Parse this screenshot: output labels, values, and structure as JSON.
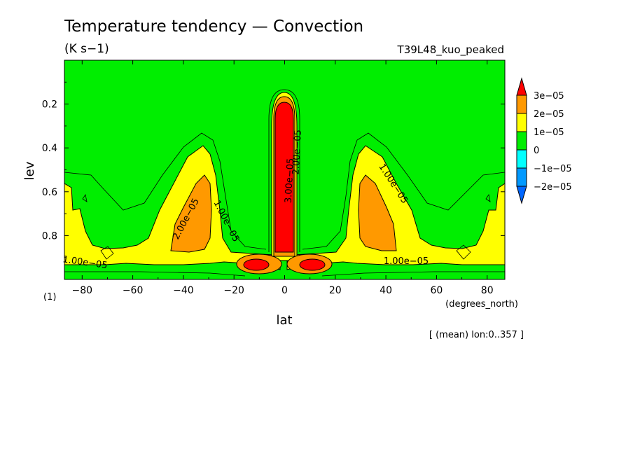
{
  "chart_data": {
    "type": "contour",
    "title": "Temperature tendency — Convection",
    "units_label": "(K s−1)",
    "run_label": "T39L48_kuo_peaked",
    "xlabel": "lat",
    "x_units": "(degrees_north)",
    "ylabel": "lev",
    "y_units": "(1)",
    "footnote": "[ (mean) lon:0..357 ]",
    "xlim": [
      -87,
      87
    ],
    "ylim": [
      1.0,
      0.0
    ],
    "y_inverted": true,
    "xticks": [
      -80,
      -60,
      -40,
      -20,
      0,
      20,
      40,
      60,
      80
    ],
    "xtick_labels": [
      "−80",
      "−60",
      "−40",
      "−20",
      "0",
      "20",
      "40",
      "60",
      "80"
    ],
    "yticks": [
      0.2,
      0.4,
      0.6,
      0.8
    ],
    "ytick_labels": [
      "0.2",
      "0.4",
      "0.6",
      "0.8"
    ],
    "colorbar": {
      "levels": [
        "3e−05",
        "2e−05",
        "1e−05",
        "0",
        "−1e−05",
        "−2e−05"
      ],
      "colors": [
        "#ff0000",
        "#ff9900",
        "#ffff00",
        "#00ee00",
        "#00ffff",
        "#0099ff",
        "#0066ff"
      ]
    },
    "contour_labels": [
      {
        "text": "1.00e−05",
        "lat": -79,
        "lev": 0.935,
        "angle": 8
      },
      {
        "text": "2.00e−05",
        "lat": -38,
        "lev": 0.73,
        "angle": -62
      },
      {
        "text": "1.00e−05",
        "lat": -24,
        "lev": 0.74,
        "angle": 63
      },
      {
        "text": "3.00e−05",
        "lat": 3,
        "lev": 0.55,
        "angle": -87
      },
      {
        "text": "2.00e−05",
        "lat": 6,
        "lev": 0.42,
        "angle": -87
      },
      {
        "text": "1.00e−05",
        "lat": 42,
        "lev": 0.57,
        "angle": 57
      },
      {
        "text": "1.00e−05",
        "lat": 48,
        "lev": 0.93,
        "angle": 0
      }
    ]
  }
}
